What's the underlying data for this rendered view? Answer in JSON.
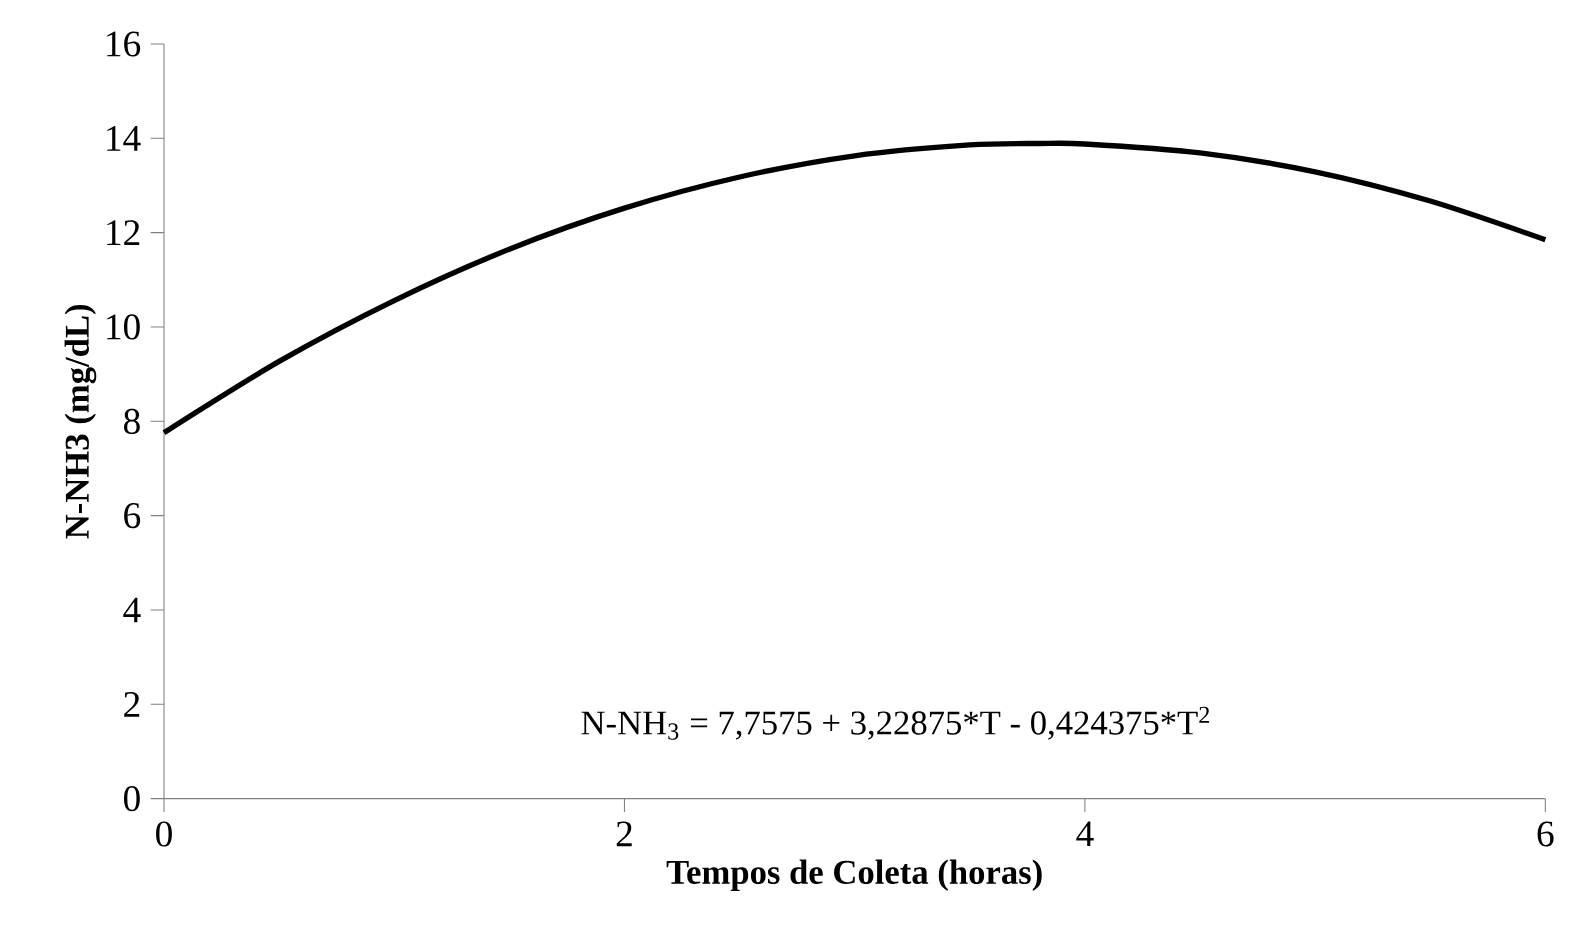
{
  "chart_data": {
    "type": "line",
    "xlabel": "Tempos de Coleta (horas)",
    "ylabel": "N-NH3 (mg/dL)",
    "x": [
      0,
      0.5,
      1,
      1.5,
      2,
      2.5,
      3,
      3.5,
      3.8,
      4,
      4.5,
      5,
      5.5,
      6
    ],
    "values": [
      7.76,
      9.27,
      10.56,
      11.65,
      12.52,
      13.18,
      13.63,
      13.86,
      13.89,
      13.88,
      13.69,
      13.29,
      12.67,
      11.85
    ],
    "color": "#000000",
    "xlim": [
      0,
      6
    ],
    "xticks": [
      0,
      2,
      4,
      6
    ],
    "ylim": [
      0,
      16
    ],
    "yticks": [
      0,
      2,
      4,
      6,
      8,
      10,
      12,
      14,
      16
    ],
    "annotations": [
      "N-NH$_{3}$ = 7,7575 + 3,22875*T - 0,424375*T$^{2}$"
    ]
  }
}
